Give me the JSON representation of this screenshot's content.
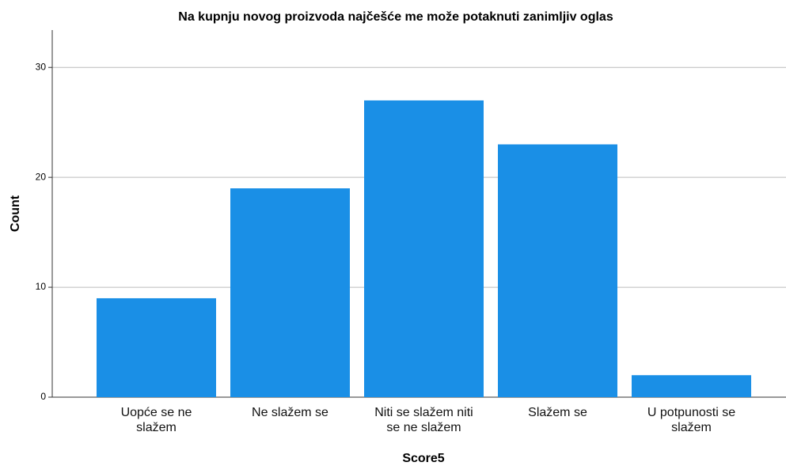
{
  "chart_data": {
    "type": "bar",
    "title": "Na kupnju novog proizvoda najčešće me može potaknuti zanimljiv oglas",
    "x_label": "Score5",
    "y_label": "Count",
    "categories": [
      "Uopće se ne\nslažem",
      "Ne slažem se",
      "Niti se slažem niti\nse ne slažem",
      "Slažem se",
      "U potpunosti se\nslažem"
    ],
    "values": [
      9,
      19,
      27,
      23,
      2
    ],
    "color": "#1a8fe6",
    "ylim": [
      0,
      33.4
    ],
    "yticks": [
      0,
      10,
      20,
      30
    ],
    "grid": true
  }
}
